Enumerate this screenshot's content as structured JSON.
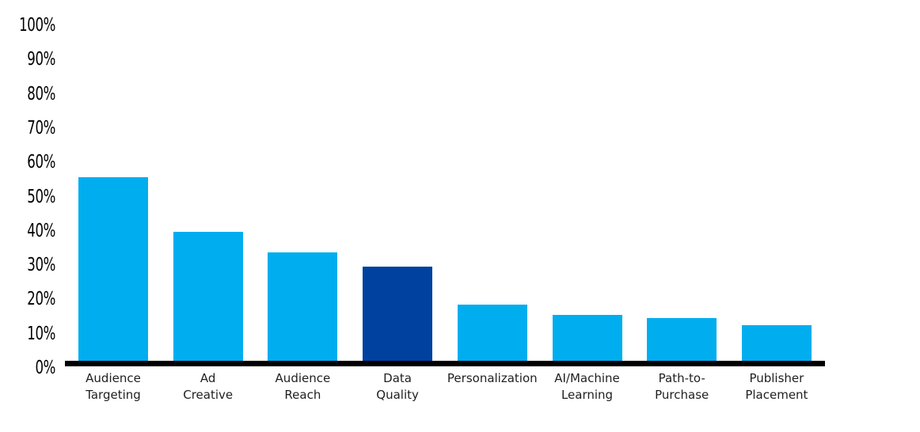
{
  "chart_data": {
    "type": "bar",
    "title": "",
    "xlabel": "",
    "ylabel": "",
    "categories": [
      "Audience Targeting",
      "Ad Creative",
      "Audience Reach",
      "Data Quality",
      "Personalization",
      "AI/Machine Learning",
      "Path-to-Purchase",
      "Publisher Placement"
    ],
    "category_label_lines": [
      [
        "Audience",
        "Targeting"
      ],
      [
        "Ad",
        "Creative"
      ],
      [
        "Audience",
        "Reach"
      ],
      [
        "Data",
        "Quality"
      ],
      [
        "Personalization"
      ],
      [
        "AI/Machine",
        "Learning"
      ],
      [
        "Path-to-",
        "Purchase"
      ],
      [
        "Publisher",
        "Placement"
      ]
    ],
    "values": [
      55,
      39,
      33,
      29,
      18,
      15,
      14,
      12
    ],
    "unit": "%",
    "highlight_index": 3,
    "ylim": [
      0,
      100
    ],
    "ytick_step": 10,
    "ytick_labels": [
      "0%",
      "10%",
      "20%",
      "30%",
      "40%",
      "50%",
      "60%",
      "70%",
      "80%",
      "90%",
      "100%"
    ],
    "grid": false,
    "legend_position": "none",
    "colors": {
      "bar_default": "#00AEEF",
      "bar_highlight": "#0041A0",
      "axis_line": "#000000",
      "tick_label": "#000000",
      "category_label": "#1f1f1f",
      "background": "#FFFFFF"
    }
  }
}
